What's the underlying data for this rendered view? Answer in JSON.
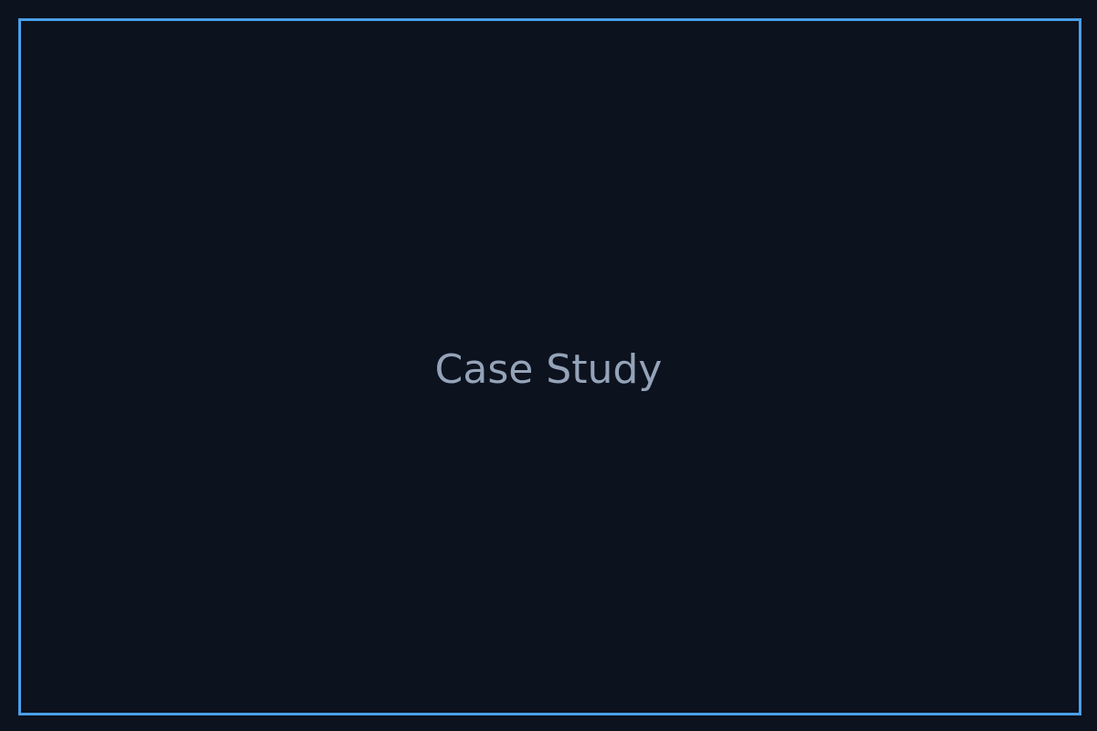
{
  "title": "Case Study",
  "colors": {
    "background": "#0c121e",
    "border": "#4a9fe8",
    "text": "#94a3b8"
  }
}
